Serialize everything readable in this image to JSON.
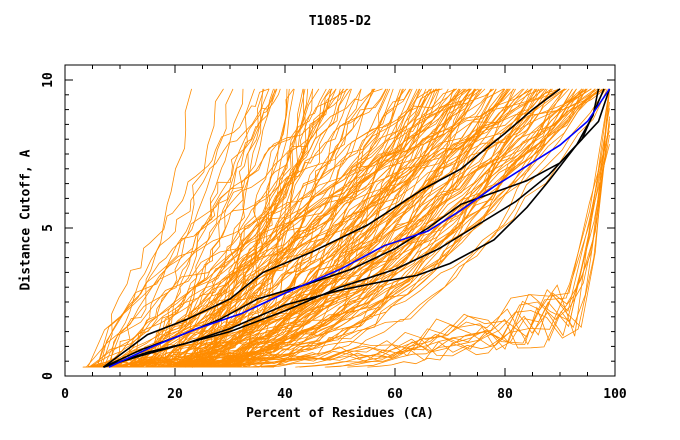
{
  "chart_data": {
    "type": "line",
    "title": "T1085-D2",
    "xlabel": "Percent of Residues (CA)",
    "ylabel": "Distance Cutoff, A",
    "xlim": [
      0,
      100
    ],
    "ylim": [
      0,
      10
    ],
    "xticks": [
      "0",
      "20",
      "40",
      "60",
      "80",
      "100"
    ],
    "yticks": [
      "0",
      "5",
      "10"
    ],
    "grid": false,
    "colors": {
      "models": "#ff8c00",
      "highlight": "#000000",
      "reference": "#0000ff"
    },
    "series": [
      {
        "color": "#000000",
        "x": [
          7,
          15,
          22,
          30,
          36,
          45,
          55,
          65,
          72,
          80,
          85,
          90
        ],
        "y": [
          0.3,
          1.4,
          1.9,
          2.6,
          3.5,
          4.2,
          5.1,
          6.3,
          7.0,
          8.2,
          9.0,
          9.7
        ]
      },
      {
        "color": "#000000",
        "x": [
          7,
          14,
          20,
          28,
          35,
          44,
          52,
          60,
          66,
          72,
          78,
          84,
          90,
          94,
          98
        ],
        "y": [
          0.3,
          0.9,
          1.3,
          1.9,
          2.6,
          3.1,
          3.6,
          4.3,
          5.0,
          5.8,
          6.2,
          6.6,
          7.2,
          8.0,
          9.7
        ]
      },
      {
        "color": "#000000",
        "x": [
          7,
          15,
          22,
          30,
          40,
          50,
          60,
          68,
          75,
          82,
          88,
          93,
          97,
          99
        ],
        "y": [
          0.3,
          0.8,
          1.1,
          1.5,
          2.2,
          3.0,
          3.6,
          4.3,
          5.1,
          5.9,
          6.8,
          7.8,
          8.6,
          9.7
        ]
      },
      {
        "color": "#000000",
        "x": [
          7,
          14,
          22,
          30,
          40,
          50,
          58,
          64,
          70,
          78,
          84,
          88,
          93,
          96,
          97
        ],
        "y": [
          0.3,
          0.7,
          1.1,
          1.6,
          2.4,
          2.9,
          3.2,
          3.4,
          3.8,
          4.6,
          5.7,
          6.6,
          7.8,
          8.8,
          9.7
        ]
      },
      {
        "color": "#0000ff",
        "x": [
          8,
          16,
          24,
          32,
          40,
          50,
          58,
          66,
          72,
          78,
          84,
          90,
          95,
          99
        ],
        "y": [
          0.3,
          1.0,
          1.6,
          2.1,
          2.8,
          3.6,
          4.4,
          4.9,
          5.6,
          6.4,
          7.1,
          7.8,
          8.6,
          9.7
        ]
      }
    ]
  }
}
